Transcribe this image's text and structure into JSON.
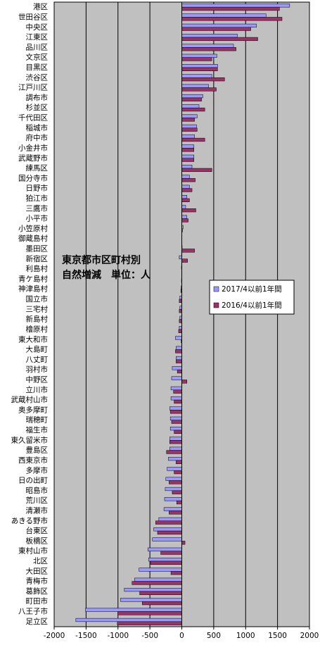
{
  "chart_data": {
    "type": "hbar",
    "annotation": [
      "東京都市区町村別",
      "自然増減　単位：人"
    ],
    "categories": [
      "港区",
      "世田谷区",
      "中央区",
      "江東区",
      "品川区",
      "文京区",
      "目黒区",
      "渋谷区",
      "江戸川区",
      "調布市",
      "杉並区",
      "千代田区",
      "稲城市",
      "府中市",
      "小金井市",
      "武蔵野市",
      "練馬区",
      "国分寺市",
      "日野市",
      "狛江市",
      "三鷹市",
      "小平市",
      "小笠原村",
      "御蔵島村",
      "墨田区",
      "新宿区",
      "利島村",
      "青ケ島村",
      "神津島村",
      "国立市",
      "三宅村",
      "新島村",
      "檜原村",
      "東大和市",
      "大島町",
      "八丈町",
      "羽村市",
      "中野区",
      "立川市",
      "武蔵村山市",
      "奥多摩町",
      "瑞穂町",
      "福生市",
      "東久留米市",
      "豊島区",
      "西東京市",
      "多摩市",
      "日の出町",
      "昭島市",
      "荒川区",
      "清瀬市",
      "あきる野市",
      "台東区",
      "板橋区",
      "東村山市",
      "北区",
      "大田区",
      "青梅市",
      "葛飾区",
      "町田市",
      "八王子市",
      "足立区"
    ],
    "series": [
      {
        "name": "2017/4以前1年間",
        "color": "#9999ff",
        "values": [
          1690,
          1320,
          1170,
          870,
          810,
          550,
          560,
          470,
          420,
          330,
          270,
          240,
          230,
          200,
          190,
          190,
          160,
          120,
          120,
          80,
          60,
          80,
          20,
          2,
          5,
          -40,
          -5,
          -3,
          -10,
          -30,
          -30,
          -30,
          -40,
          -100,
          -90,
          -90,
          -150,
          -160,
          -170,
          -170,
          -190,
          -180,
          -180,
          -190,
          -190,
          -210,
          -230,
          -250,
          -260,
          -270,
          -280,
          -360,
          -440,
          -460,
          -530,
          -520,
          -670,
          -740,
          -900,
          -960,
          -1510,
          -1660
        ]
      },
      {
        "name": "2016/4以前1年間",
        "color": "#993366",
        "values": [
          1530,
          1570,
          1080,
          1190,
          850,
          470,
          560,
          670,
          540,
          310,
          360,
          200,
          240,
          360,
          190,
          190,
          470,
          210,
          160,
          120,
          220,
          100,
          10,
          1,
          200,
          90,
          -3,
          -5,
          -15,
          -40,
          -40,
          -40,
          -50,
          -10,
          -100,
          -90,
          -70,
          80,
          -130,
          -120,
          -180,
          -160,
          -120,
          -190,
          -240,
          -90,
          -120,
          -200,
          -150,
          -80,
          -200,
          -410,
          -380,
          50,
          -330,
          -490,
          -170,
          -780,
          -660,
          -620,
          -1000,
          -1010
        ]
      }
    ],
    "xlim": [
      -2000,
      2000
    ],
    "xticks": [
      -2000,
      -1500,
      -1000,
      -500,
      0,
      500,
      1000,
      1500,
      2000
    ],
    "grid": true,
    "plot_color": "#c0c0c0"
  }
}
